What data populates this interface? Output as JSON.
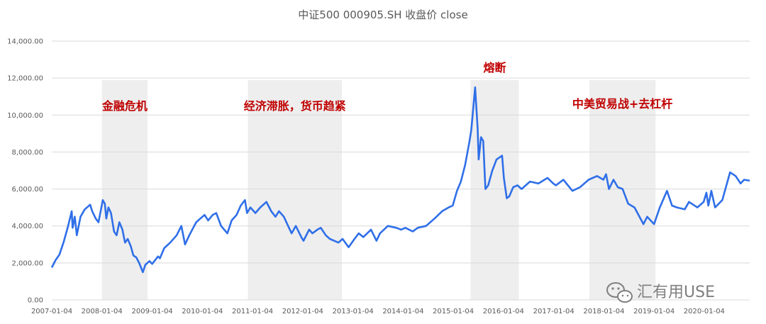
{
  "chart_data": {
    "type": "line",
    "title": "中证500 000905.SH 收盘价 close",
    "xlabel": "",
    "ylabel": "",
    "ylim": [
      0,
      14000
    ],
    "yticks": [
      0,
      2000,
      4000,
      6000,
      8000,
      10000,
      12000,
      14000
    ],
    "ytick_labels": [
      "0.00",
      "2,000.00",
      "4,000.00",
      "6,000.00",
      "8,000.00",
      "10,000.00",
      "12,000.00",
      "14,000.00"
    ],
    "xticks": [
      "2007-01-04",
      "2008-01-04",
      "2009-01-04",
      "2010-01-04",
      "2011-01-04",
      "2012-01-04",
      "2013-01-04",
      "2014-01-04",
      "2015-01-04",
      "2016-01-04",
      "2017-01-04",
      "2018-01-04",
      "2019-01-04",
      "2020-01-04"
    ],
    "xlim": [
      "2007-01-04",
      "2020-11-30"
    ],
    "grid": true,
    "legend": "none",
    "series": [
      {
        "color": "#2f6fe8",
        "points": [
          [
            "2007-01-04",
            1750
          ],
          [
            "2007-02-01",
            2150
          ],
          [
            "2007-03-01",
            2450
          ],
          [
            "2007-04-01",
            3150
          ],
          [
            "2007-05-01",
            3950
          ],
          [
            "2007-05-29",
            4800
          ],
          [
            "2007-06-05",
            3900
          ],
          [
            "2007-06-20",
            4500
          ],
          [
            "2007-07-05",
            3500
          ],
          [
            "2007-08-01",
            4500
          ],
          [
            "2007-09-01",
            4900
          ],
          [
            "2007-10-10",
            5150
          ],
          [
            "2007-10-25",
            4800
          ],
          [
            "2007-11-20",
            4400
          ],
          [
            "2007-12-10",
            4200
          ],
          [
            "2008-01-10",
            5400
          ],
          [
            "2008-01-25",
            5200
          ],
          [
            "2008-02-05",
            4400
          ],
          [
            "2008-02-20",
            5000
          ],
          [
            "2008-03-10",
            4700
          ],
          [
            "2008-04-01",
            3700
          ],
          [
            "2008-04-20",
            3500
          ],
          [
            "2008-05-10",
            4200
          ],
          [
            "2008-06-01",
            3800
          ],
          [
            "2008-06-20",
            3100
          ],
          [
            "2008-07-10",
            3300
          ],
          [
            "2008-08-01",
            2900
          ],
          [
            "2008-08-20",
            2400
          ],
          [
            "2008-09-10",
            2300
          ],
          [
            "2008-10-01",
            2000
          ],
          [
            "2008-10-28",
            1500
          ],
          [
            "2008-11-15",
            1900
          ],
          [
            "2008-12-15",
            2100
          ],
          [
            "2009-01-04",
            1950
          ],
          [
            "2009-02-15",
            2350
          ],
          [
            "2009-03-01",
            2250
          ],
          [
            "2009-04-01",
            2800
          ],
          [
            "2009-05-15",
            3100
          ],
          [
            "2009-07-01",
            3500
          ],
          [
            "2009-08-04",
            4000
          ],
          [
            "2009-08-31",
            3000
          ],
          [
            "2009-10-01",
            3500
          ],
          [
            "2009-11-20",
            4200
          ],
          [
            "2009-12-20",
            4400
          ],
          [
            "2010-01-20",
            4600
          ],
          [
            "2010-02-15",
            4300
          ],
          [
            "2010-03-20",
            4600
          ],
          [
            "2010-04-15",
            4700
          ],
          [
            "2010-05-20",
            4000
          ],
          [
            "2010-07-05",
            3600
          ],
          [
            "2010-08-05",
            4300
          ],
          [
            "2010-09-10",
            4600
          ],
          [
            "2010-10-10",
            5100
          ],
          [
            "2010-11-10",
            5400
          ],
          [
            "2010-11-25",
            4700
          ],
          [
            "2010-12-20",
            5000
          ],
          [
            "2011-01-25",
            4700
          ],
          [
            "2011-03-01",
            5000
          ],
          [
            "2011-04-15",
            5300
          ],
          [
            "2011-05-20",
            4800
          ],
          [
            "2011-06-20",
            4500
          ],
          [
            "2011-07-15",
            4800
          ],
          [
            "2011-08-20",
            4500
          ],
          [
            "2011-09-20",
            4000
          ],
          [
            "2011-10-15",
            3600
          ],
          [
            "2011-11-15",
            4000
          ],
          [
            "2011-12-25",
            3400
          ],
          [
            "2012-01-10",
            3200
          ],
          [
            "2012-02-20",
            3800
          ],
          [
            "2012-03-15",
            3600
          ],
          [
            "2012-04-20",
            3800
          ],
          [
            "2012-05-15",
            3900
          ],
          [
            "2012-06-20",
            3500
          ],
          [
            "2012-07-20",
            3300
          ],
          [
            "2012-08-20",
            3200
          ],
          [
            "2012-09-20",
            3100
          ],
          [
            "2012-10-20",
            3300
          ],
          [
            "2012-12-03",
            2850
          ],
          [
            "2013-01-15",
            3300
          ],
          [
            "2013-02-15",
            3600
          ],
          [
            "2013-03-20",
            3400
          ],
          [
            "2013-05-15",
            3800
          ],
          [
            "2013-06-24",
            3200
          ],
          [
            "2013-07-20",
            3600
          ],
          [
            "2013-09-15",
            4000
          ],
          [
            "2013-11-15",
            3900
          ],
          [
            "2013-12-20",
            3800
          ],
          [
            "2014-01-20",
            3900
          ],
          [
            "2014-03-15",
            3700
          ],
          [
            "2014-04-20",
            3900
          ],
          [
            "2014-06-20",
            4000
          ],
          [
            "2014-08-20",
            4400
          ],
          [
            "2014-10-15",
            4800
          ],
          [
            "2014-12-01",
            5000
          ],
          [
            "2014-12-31",
            5100
          ],
          [
            "2015-01-31",
            5900
          ],
          [
            "2015-02-28",
            6400
          ],
          [
            "2015-03-31",
            7300
          ],
          [
            "2015-04-30",
            8500
          ],
          [
            "2015-05-15",
            9200
          ],
          [
            "2015-06-12",
            11500
          ],
          [
            "2015-06-30",
            9300
          ],
          [
            "2015-07-08",
            7600
          ],
          [
            "2015-07-25",
            8800
          ],
          [
            "2015-08-10",
            8600
          ],
          [
            "2015-08-26",
            6000
          ],
          [
            "2015-09-15",
            6200
          ],
          [
            "2015-10-15",
            7000
          ],
          [
            "2015-11-15",
            7600
          ],
          [
            "2015-12-25",
            7800
          ],
          [
            "2016-01-07",
            6600
          ],
          [
            "2016-01-28",
            5500
          ],
          [
            "2016-02-15",
            5600
          ],
          [
            "2016-03-15",
            6100
          ],
          [
            "2016-04-15",
            6200
          ],
          [
            "2016-05-15",
            6000
          ],
          [
            "2016-07-15",
            6400
          ],
          [
            "2016-09-15",
            6300
          ],
          [
            "2016-11-20",
            6600
          ],
          [
            "2016-12-31",
            6300
          ],
          [
            "2017-01-20",
            6200
          ],
          [
            "2017-03-15",
            6500
          ],
          [
            "2017-05-20",
            5900
          ],
          [
            "2017-07-15",
            6100
          ],
          [
            "2017-09-15",
            6500
          ],
          [
            "2017-11-15",
            6700
          ],
          [
            "2017-12-31",
            6500
          ],
          [
            "2018-01-20",
            6800
          ],
          [
            "2018-02-10",
            6000
          ],
          [
            "2018-03-15",
            6500
          ],
          [
            "2018-04-15",
            6100
          ],
          [
            "2018-05-20",
            6000
          ],
          [
            "2018-06-30",
            5200
          ],
          [
            "2018-08-15",
            5000
          ],
          [
            "2018-10-19",
            4100
          ],
          [
            "2018-11-15",
            4500
          ],
          [
            "2019-01-04",
            4100
          ],
          [
            "2019-02-15",
            5000
          ],
          [
            "2019-04-08",
            5900
          ],
          [
            "2019-05-15",
            5100
          ],
          [
            "2019-06-20",
            5000
          ],
          [
            "2019-08-15",
            4900
          ],
          [
            "2019-09-15",
            5300
          ],
          [
            "2019-11-15",
            5000
          ],
          [
            "2019-12-31",
            5300
          ],
          [
            "2020-01-20",
            5800
          ],
          [
            "2020-02-03",
            5100
          ],
          [
            "2020-02-25",
            5900
          ],
          [
            "2020-03-23",
            5000
          ],
          [
            "2020-05-15",
            5400
          ],
          [
            "2020-07-10",
            6900
          ],
          [
            "2020-08-20",
            6700
          ],
          [
            "2020-09-25",
            6300
          ],
          [
            "2020-10-20",
            6500
          ],
          [
            "2020-11-30",
            6450
          ]
        ]
      }
    ],
    "annotations": [
      {
        "label": "金融危机",
        "start": "2008-01-04",
        "end": "2008-12-01"
      },
      {
        "label": "经济滞胀，货币趋紧",
        "start": "2010-12-01",
        "end": "2012-10-15"
      },
      {
        "label": "熔断",
        "start": "2015-05-10",
        "end": "2016-04-25"
      },
      {
        "label": "中美贸易战+去杠杆",
        "start": "2017-09-20",
        "end": "2019-01-15"
      }
    ],
    "band_color": "#eeeeee",
    "annotation_color": "#c00000"
  },
  "watermark": {
    "text": "汇有用USE",
    "icon": "wechat-icon"
  }
}
